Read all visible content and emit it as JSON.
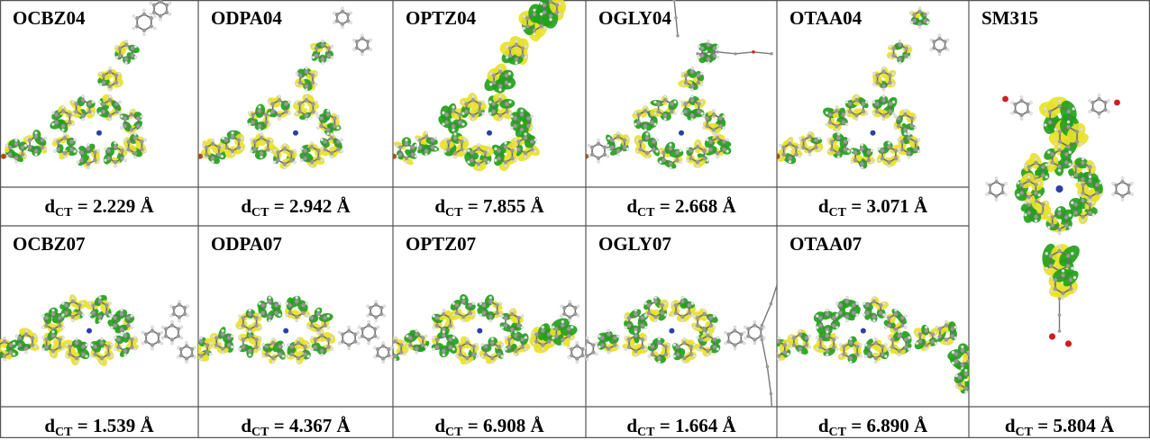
{
  "molecules": [
    {
      "id": "OCBZ04",
      "dct": "2.229 Å"
    },
    {
      "id": "ODPA04",
      "dct": "2.942 Å"
    },
    {
      "id": "OPTZ04",
      "dct": "7.855 Å"
    },
    {
      "id": "OGLY04",
      "dct": "2.668 Å"
    },
    {
      "id": "OTAA04",
      "dct": "3.071 Å"
    },
    {
      "id": "OCBZ07",
      "dct": "1.539 Å"
    },
    {
      "id": "ODPA07",
      "dct": "4.367 Å"
    },
    {
      "id": "OPTZ07",
      "dct": "6.908 Å"
    },
    {
      "id": "OGLY07",
      "dct": "1.664 Å"
    },
    {
      "id": "OTAA07",
      "dct": "6.890 Å"
    },
    {
      "id": "SM315",
      "dct": "5.804 Å"
    }
  ],
  "dct_prefix": "d",
  "dct_subscript": "CT",
  "dct_eq": " = ",
  "colors": {
    "lobe_green": "#22a11a",
    "lobe_yellow": "#e8e22a",
    "atom_grey": "#9a9a9a",
    "hydrogen": "#e6e6e6",
    "nitrogen": "#2b3fa8",
    "oxygen": "#d01d1d",
    "bromine": "#a0521a",
    "grid": "#555555"
  }
}
